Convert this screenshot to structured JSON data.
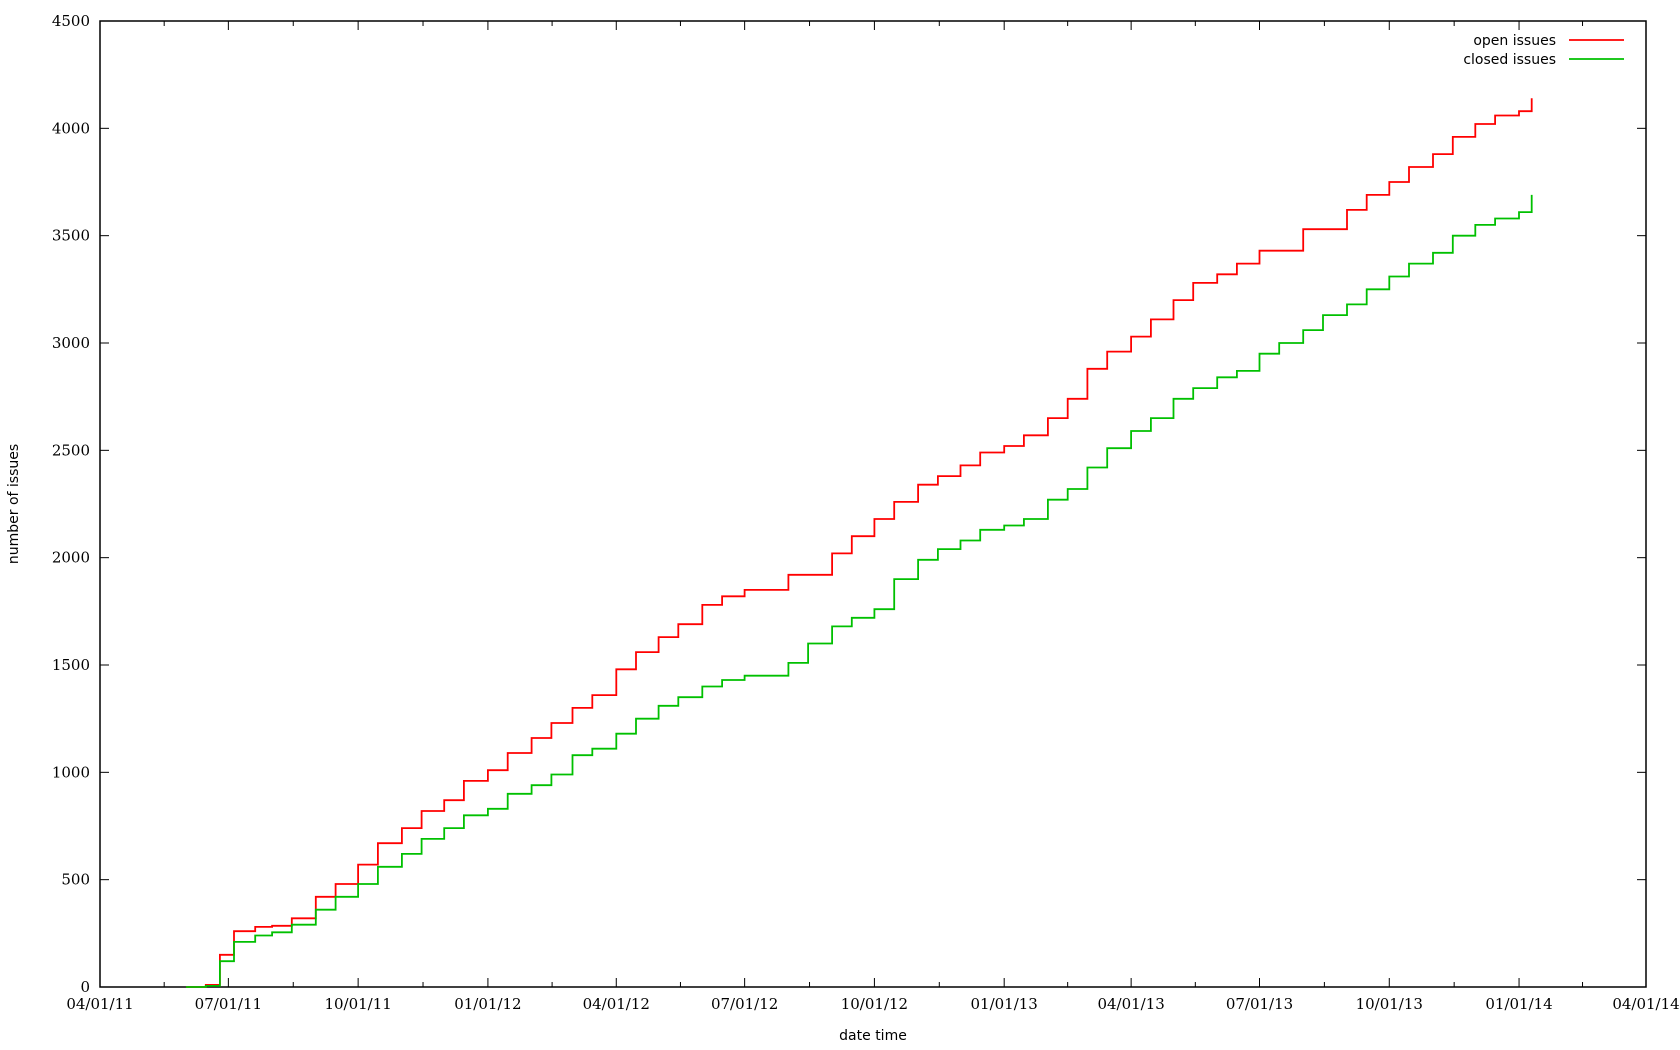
{
  "chart_data": {
    "type": "line",
    "title": "",
    "xlabel": "date time",
    "ylabel": "number of issues",
    "xlim": [
      "2011-04-01",
      "2014-04-01"
    ],
    "ylim": [
      0,
      4500
    ],
    "grid": false,
    "legend_position": "top-right",
    "x_ticks": [
      {
        "date": "2011-04-01",
        "label": "04/01/11"
      },
      {
        "date": "2011-07-01",
        "label": "07/01/11"
      },
      {
        "date": "2011-10-01",
        "label": "10/01/11"
      },
      {
        "date": "2012-01-01",
        "label": "01/01/12"
      },
      {
        "date": "2012-04-01",
        "label": "04/01/12"
      },
      {
        "date": "2012-07-01",
        "label": "07/01/12"
      },
      {
        "date": "2012-10-01",
        "label": "10/01/12"
      },
      {
        "date": "2013-01-01",
        "label": "01/01/13"
      },
      {
        "date": "2013-04-01",
        "label": "04/01/13"
      },
      {
        "date": "2013-07-01",
        "label": "07/01/13"
      },
      {
        "date": "2013-10-01",
        "label": "10/01/13"
      },
      {
        "date": "2014-01-01",
        "label": "01/01/14"
      },
      {
        "date": "2014-04-01",
        "label": "04/01/14"
      }
    ],
    "y_ticks": [
      0,
      500,
      1000,
      1500,
      2000,
      2500,
      3000,
      3500,
      4000,
      4500
    ],
    "series": [
      {
        "name": "open issues",
        "color": "#ff0000",
        "points": [
          [
            "2011-06-01",
            0
          ],
          [
            "2011-06-15",
            10
          ],
          [
            "2011-06-25",
            150
          ],
          [
            "2011-07-05",
            260
          ],
          [
            "2011-07-20",
            280
          ],
          [
            "2011-08-01",
            285
          ],
          [
            "2011-08-15",
            320
          ],
          [
            "2011-09-01",
            420
          ],
          [
            "2011-09-15",
            480
          ],
          [
            "2011-10-01",
            570
          ],
          [
            "2011-10-15",
            670
          ],
          [
            "2011-11-01",
            740
          ],
          [
            "2011-11-15",
            820
          ],
          [
            "2011-12-01",
            870
          ],
          [
            "2011-12-15",
            960
          ],
          [
            "2012-01-01",
            1010
          ],
          [
            "2012-01-15",
            1090
          ],
          [
            "2012-02-01",
            1160
          ],
          [
            "2012-02-15",
            1230
          ],
          [
            "2012-03-01",
            1300
          ],
          [
            "2012-03-15",
            1360
          ],
          [
            "2012-04-01",
            1480
          ],
          [
            "2012-04-15",
            1560
          ],
          [
            "2012-05-01",
            1630
          ],
          [
            "2012-05-15",
            1690
          ],
          [
            "2012-06-01",
            1780
          ],
          [
            "2012-06-15",
            1820
          ],
          [
            "2012-07-01",
            1850
          ],
          [
            "2012-08-01",
            1920
          ],
          [
            "2012-09-01",
            2020
          ],
          [
            "2012-09-15",
            2100
          ],
          [
            "2012-10-01",
            2180
          ],
          [
            "2012-10-15",
            2260
          ],
          [
            "2012-11-01",
            2340
          ],
          [
            "2012-11-15",
            2380
          ],
          [
            "2012-12-01",
            2430
          ],
          [
            "2012-12-15",
            2490
          ],
          [
            "2013-01-01",
            2520
          ],
          [
            "2013-01-15",
            2570
          ],
          [
            "2013-02-01",
            2650
          ],
          [
            "2013-02-15",
            2740
          ],
          [
            "2013-03-01",
            2880
          ],
          [
            "2013-03-15",
            2960
          ],
          [
            "2013-04-01",
            3030
          ],
          [
            "2013-04-15",
            3110
          ],
          [
            "2013-05-01",
            3200
          ],
          [
            "2013-05-15",
            3280
          ],
          [
            "2013-06-01",
            3320
          ],
          [
            "2013-06-15",
            3370
          ],
          [
            "2013-07-01",
            3430
          ],
          [
            "2013-08-01",
            3530
          ],
          [
            "2013-09-01",
            3620
          ],
          [
            "2013-09-15",
            3690
          ],
          [
            "2013-10-01",
            3750
          ],
          [
            "2013-10-15",
            3820
          ],
          [
            "2013-11-01",
            3880
          ],
          [
            "2013-11-15",
            3960
          ],
          [
            "2013-12-01",
            4020
          ],
          [
            "2013-12-15",
            4060
          ],
          [
            "2014-01-01",
            4080
          ],
          [
            "2014-01-10",
            4140
          ]
        ]
      },
      {
        "name": "closed issues",
        "color": "#00c000",
        "points": [
          [
            "2011-06-01",
            0
          ],
          [
            "2011-06-15",
            5
          ],
          [
            "2011-06-25",
            120
          ],
          [
            "2011-07-05",
            210
          ],
          [
            "2011-07-20",
            240
          ],
          [
            "2011-08-01",
            255
          ],
          [
            "2011-08-15",
            290
          ],
          [
            "2011-09-01",
            360
          ],
          [
            "2011-09-15",
            420
          ],
          [
            "2011-10-01",
            480
          ],
          [
            "2011-10-15",
            560
          ],
          [
            "2011-11-01",
            620
          ],
          [
            "2011-11-15",
            690
          ],
          [
            "2011-12-01",
            740
          ],
          [
            "2011-12-15",
            800
          ],
          [
            "2012-01-01",
            830
          ],
          [
            "2012-01-15",
            900
          ],
          [
            "2012-02-01",
            940
          ],
          [
            "2012-02-15",
            990
          ],
          [
            "2012-03-01",
            1080
          ],
          [
            "2012-03-15",
            1110
          ],
          [
            "2012-04-01",
            1180
          ],
          [
            "2012-04-15",
            1250
          ],
          [
            "2012-05-01",
            1310
          ],
          [
            "2012-05-15",
            1350
          ],
          [
            "2012-06-01",
            1400
          ],
          [
            "2012-06-15",
            1430
          ],
          [
            "2012-07-01",
            1450
          ],
          [
            "2012-08-01",
            1510
          ],
          [
            "2012-08-15",
            1600
          ],
          [
            "2012-09-01",
            1680
          ],
          [
            "2012-09-15",
            1720
          ],
          [
            "2012-10-01",
            1760
          ],
          [
            "2012-10-15",
            1900
          ],
          [
            "2012-11-01",
            1990
          ],
          [
            "2012-11-15",
            2040
          ],
          [
            "2012-12-01",
            2080
          ],
          [
            "2012-12-15",
            2130
          ],
          [
            "2013-01-01",
            2150
          ],
          [
            "2013-01-15",
            2180
          ],
          [
            "2013-02-01",
            2270
          ],
          [
            "2013-02-15",
            2320
          ],
          [
            "2013-03-01",
            2420
          ],
          [
            "2013-03-15",
            2510
          ],
          [
            "2013-04-01",
            2590
          ],
          [
            "2013-04-15",
            2650
          ],
          [
            "2013-05-01",
            2740
          ],
          [
            "2013-05-15",
            2790
          ],
          [
            "2013-06-01",
            2840
          ],
          [
            "2013-06-15",
            2870
          ],
          [
            "2013-07-01",
            2950
          ],
          [
            "2013-07-15",
            3000
          ],
          [
            "2013-08-01",
            3060
          ],
          [
            "2013-08-15",
            3130
          ],
          [
            "2013-09-01",
            3180
          ],
          [
            "2013-09-15",
            3250
          ],
          [
            "2013-10-01",
            3310
          ],
          [
            "2013-10-15",
            3370
          ],
          [
            "2013-11-01",
            3420
          ],
          [
            "2013-11-15",
            3500
          ],
          [
            "2013-12-01",
            3550
          ],
          [
            "2013-12-15",
            3580
          ],
          [
            "2014-01-01",
            3610
          ],
          [
            "2014-01-10",
            3690
          ]
        ]
      }
    ]
  }
}
